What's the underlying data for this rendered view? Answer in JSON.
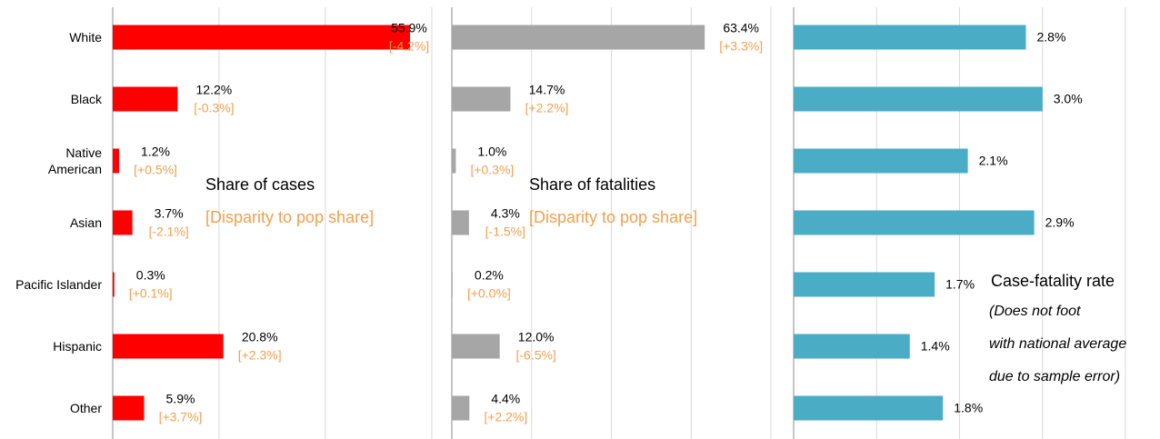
{
  "chart_data": [
    {
      "type": "bar",
      "categories": [
        "White",
        "Black",
        "Native\nAmerican",
        "Asian",
        "Pacific Islander",
        "Hispanic",
        "Other"
      ],
      "values": [
        55.9,
        12.2,
        1.2,
        3.7,
        0.3,
        20.8,
        5.9
      ],
      "value_labels": [
        "55.9%",
        "12.2%",
        "1.2%",
        "3.7%",
        "0.3%",
        "20.8%",
        "5.9%"
      ],
      "disparity": [
        -4.2,
        -0.3,
        0.5,
        -2.1,
        0.1,
        2.3,
        3.7
      ],
      "disparity_labels": [
        "[-4.2%]",
        "[-0.3%]",
        "[+0.5%]",
        "[-2.1%]",
        "[+0.1%]",
        "[+2.3%]",
        "[+3.7%]"
      ],
      "color": "#ff0000",
      "label_color": "#f0a050",
      "xlim": [
        0,
        60
      ],
      "xticks": [
        0,
        20,
        40,
        60
      ],
      "grid": true,
      "annotations": [
        "Share of cases",
        "[Disparity to pop share]"
      ]
    },
    {
      "type": "bar",
      "values": [
        63.4,
        14.7,
        1.0,
        4.3,
        0.2,
        12.0,
        4.4
      ],
      "value_labels": [
        "63.4%",
        "14.7%",
        "1.0%",
        "4.3%",
        "0.2%",
        "12.0%",
        "4.4%"
      ],
      "disparity": [
        3.3,
        2.2,
        0.3,
        -1.5,
        0.0,
        -6.5,
        2.2
      ],
      "disparity_labels": [
        "[+3.3%]",
        "[+2.2%]",
        "[+0.3%]",
        "[-1.5%]",
        "[+0.0%]",
        "[-6.5%]",
        "[+2.2%]"
      ],
      "color": "#a6a6a6",
      "label_color": "#f0a050",
      "xlim": [
        0,
        80
      ],
      "xticks": [
        0,
        20,
        40,
        60,
        80
      ],
      "grid": true,
      "annotations": [
        "Share of fatalities",
        "[Disparity to pop share]"
      ]
    },
    {
      "type": "bar",
      "values": [
        2.8,
        3.0,
        2.1,
        2.9,
        1.7,
        1.4,
        1.8
      ],
      "value_labels": [
        "2.8%",
        "3.0%",
        "2.1%",
        "2.9%",
        "1.7%",
        "1.4%",
        "1.8%"
      ],
      "color": "#4bacc6",
      "xlim": [
        0,
        4
      ],
      "xticks": [
        0,
        1,
        2,
        3,
        4
      ],
      "grid": true,
      "annotations": [
        "Case-fatality rate"
      ],
      "note": [
        "(Does not foot",
        "with national average",
        "due to sample error)"
      ]
    }
  ]
}
